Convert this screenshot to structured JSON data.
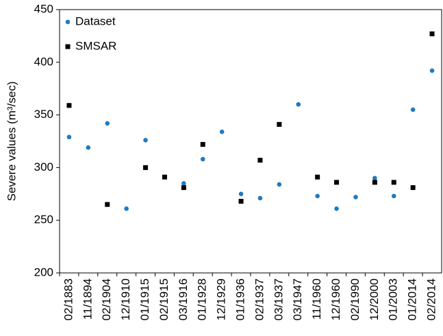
{
  "chart_data": {
    "type": "scatter",
    "y_label": "Severe values (m³/sec)",
    "categories": [
      "02/1883",
      "11/1894",
      "02/1904",
      "12/1910",
      "01/1915",
      "02/1915",
      "03/1916",
      "01/1928",
      "12/1929",
      "01/1936",
      "02/1937",
      "03/1937",
      "03/1947",
      "11/1960",
      "12/1960",
      "02/1990",
      "12/2000",
      "01/2003",
      "01/2014",
      "02/2014"
    ],
    "series": [
      {
        "name": "Dataset",
        "color": "#1f7bc1",
        "marker": "circle",
        "values": [
          329,
          319,
          342,
          261,
          326,
          null,
          285,
          308,
          334,
          275,
          271,
          284,
          360,
          273,
          261,
          272,
          290,
          273,
          355,
          392
        ]
      },
      {
        "name": "SMSAR",
        "color": "#000000",
        "marker": "square",
        "values": [
          359,
          null,
          265,
          null,
          300,
          291,
          281,
          322,
          null,
          268,
          307,
          341,
          null,
          291,
          286,
          null,
          286,
          286,
          281,
          427
        ]
      }
    ],
    "ylim": [
      200,
      450
    ],
    "yticks": [
      200,
      250,
      300,
      350,
      400,
      450
    ],
    "legend": "upper-left"
  }
}
